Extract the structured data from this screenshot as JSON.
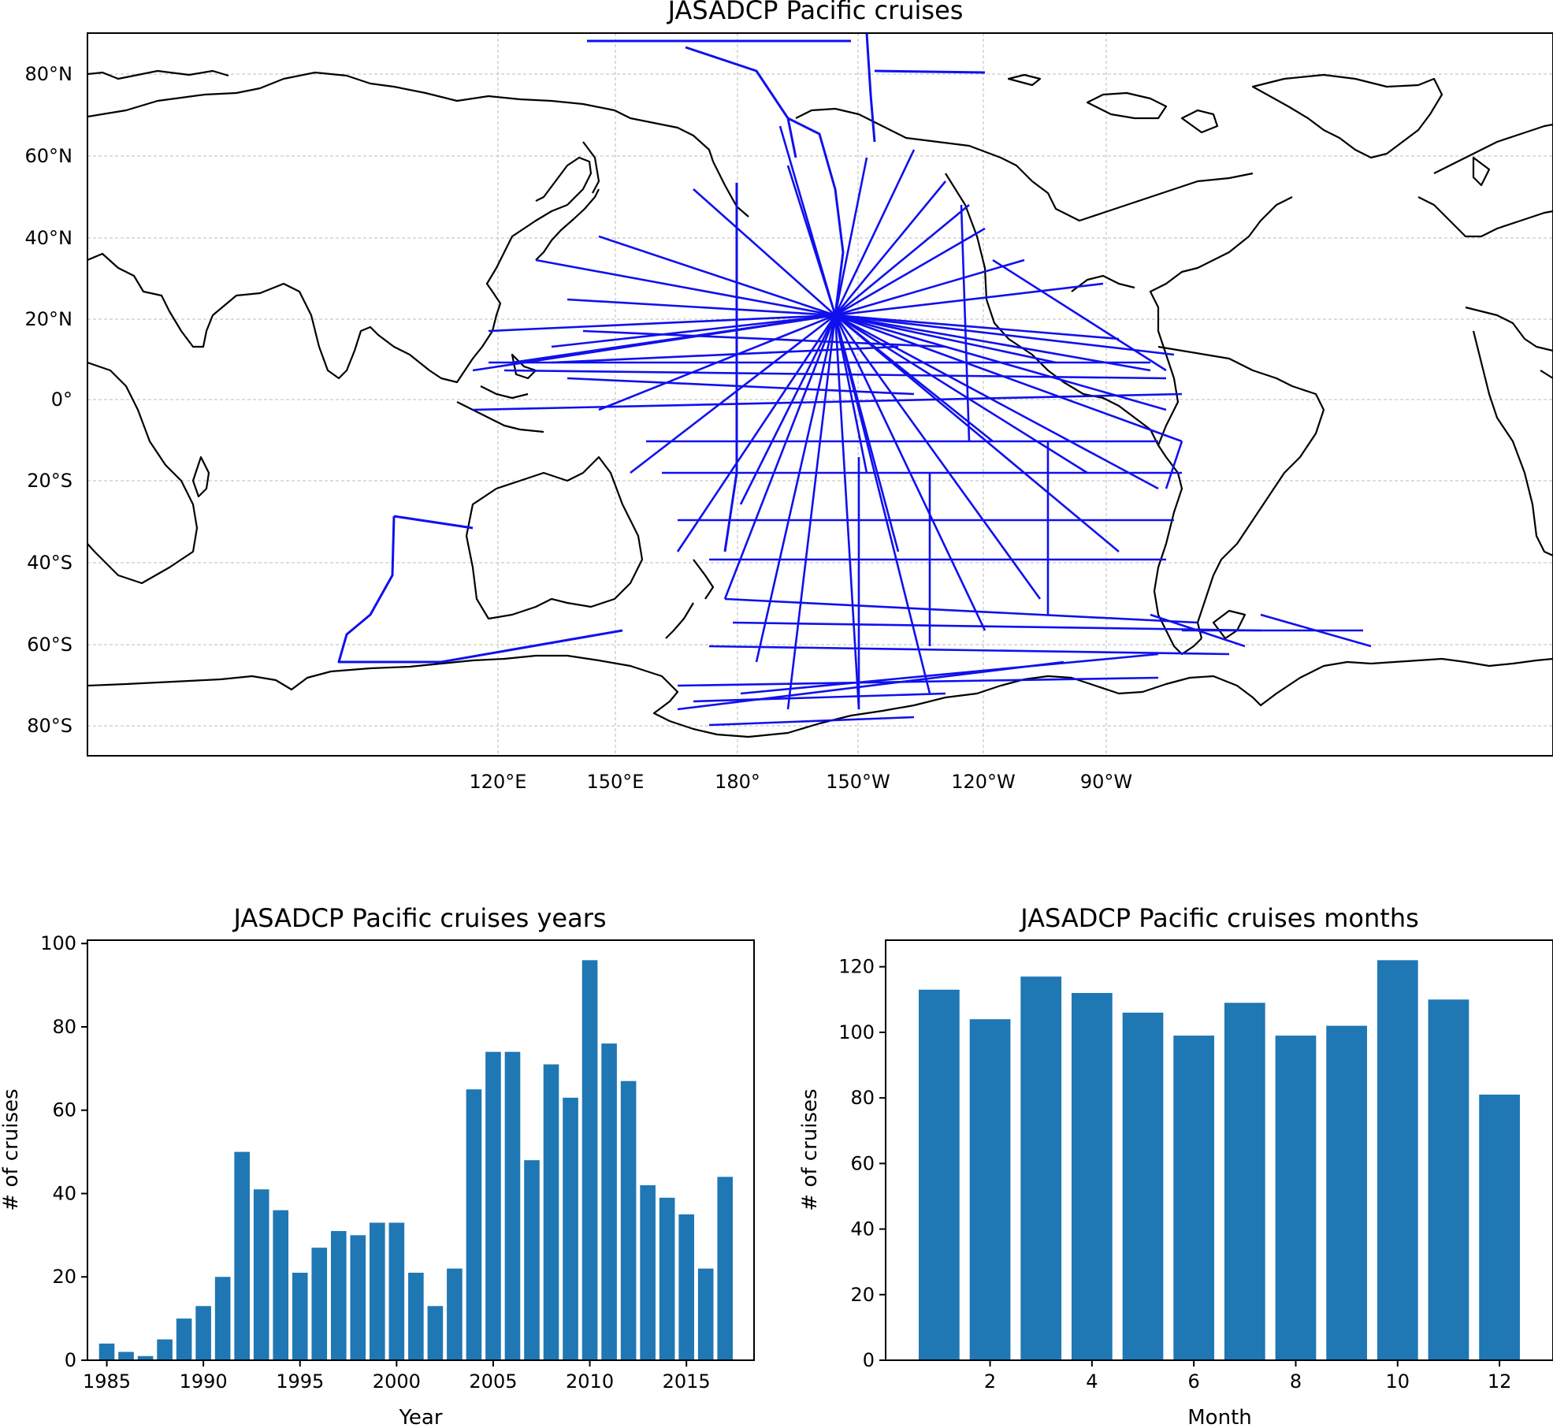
{
  "chart_data": [
    {
      "type": "map",
      "title": "JASADCP Pacific cruises",
      "lon_tick_labels": [
        "120°E",
        "150°E",
        "180°",
        "150°W",
        "120°W",
        "90°W"
      ],
      "lat_tick_labels": [
        "80°N",
        "60°N",
        "40°N",
        "20°N",
        "0°",
        "20°S",
        "40°S",
        "60°S",
        "80°S"
      ],
      "gridlines": true,
      "track_color": "#1010ee",
      "coast_color": "#000000"
    },
    {
      "type": "bar",
      "title": "JASADCP Pacific cruises years",
      "xlabel": "Year",
      "ylabel": "# of cruises",
      "x": [
        1985,
        1986,
        1987,
        1988,
        1989,
        1990,
        1991,
        1992,
        1993,
        1994,
        1995,
        1996,
        1997,
        1998,
        1999,
        2000,
        2001,
        2002,
        2003,
        2004,
        2005,
        2006,
        2007,
        2008,
        2009,
        2010,
        2011,
        2012,
        2013,
        2014,
        2015,
        2016,
        2017
      ],
      "values": [
        4,
        2,
        1,
        5,
        10,
        13,
        20,
        50,
        41,
        36,
        21,
        27,
        31,
        30,
        33,
        33,
        21,
        13,
        22,
        65,
        74,
        74,
        48,
        71,
        63,
        96,
        76,
        67,
        42,
        39,
        35,
        22,
        44
      ],
      "xticks": [
        1985,
        1990,
        1995,
        2000,
        2005,
        2010,
        2015
      ],
      "yticks": [
        0,
        20,
        40,
        60,
        80,
        100
      ],
      "xlim": [
        1984.0,
        2018.5
      ],
      "ylim": [
        0,
        100.8
      ],
      "color": "#1f77b4"
    },
    {
      "type": "bar",
      "title": "JASADCP Pacific cruises months",
      "xlabel": "Month",
      "ylabel": "# of cruises",
      "x": [
        1,
        2,
        3,
        4,
        5,
        6,
        7,
        8,
        9,
        10,
        11,
        12
      ],
      "values": [
        113,
        104,
        117,
        112,
        106,
        99,
        109,
        99,
        102,
        122,
        110,
        81
      ],
      "xticks": [
        2,
        4,
        6,
        8,
        10,
        12
      ],
      "yticks": [
        0,
        20,
        40,
        60,
        80,
        100,
        120
      ],
      "xlim": [
        -0.05,
        13.05
      ],
      "ylim": [
        0,
        128.1
      ],
      "color": "#1f77b4"
    }
  ]
}
